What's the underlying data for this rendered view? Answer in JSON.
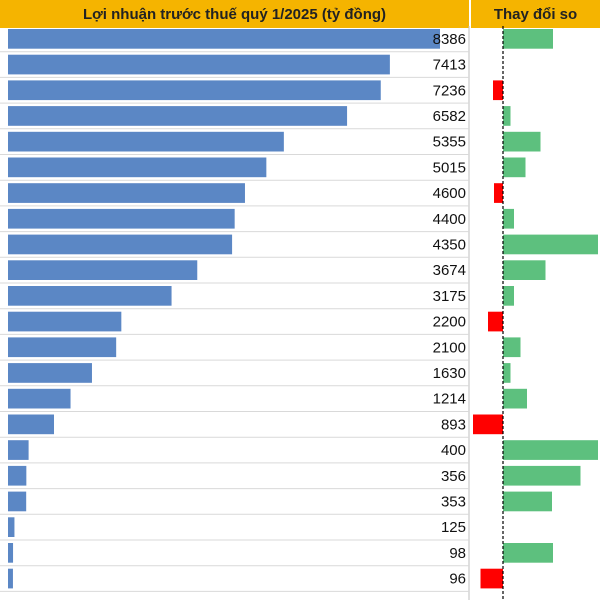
{
  "header": {
    "left_title": "Lợi nhuận trước thuế quý 1/2025 (tỷ đồng)",
    "right_title": "Thay đổi so"
  },
  "colors": {
    "header_bg": "#f5b400",
    "bar": "#5b87c5",
    "positive": "#5dc07e",
    "negative": "#ff0000",
    "row_line": "#d9d9d9"
  },
  "chart_data": [
    {
      "type": "bar",
      "orientation": "horizontal",
      "title": "Lợi nhuận trước thuế quý 1/2025 (tỷ đồng)",
      "values": [
        8386,
        7413,
        7236,
        6582,
        5355,
        5015,
        4600,
        4400,
        4350,
        3674,
        3175,
        2200,
        2100,
        1630,
        1214,
        893,
        400,
        356,
        353,
        125,
        98,
        96
      ],
      "xlim": [
        0,
        8386
      ],
      "data_labels": true,
      "grid": false
    },
    {
      "type": "bar",
      "orientation": "horizontal",
      "title": "Thay đổi so",
      "values": [
        1.0,
        0,
        -0.2,
        0.15,
        0.75,
        0.45,
        -0.18,
        0.22,
        1.9,
        0.85,
        0.22,
        -0.3,
        0.35,
        0.15,
        0.48,
        -0.6,
        1.9,
        1.55,
        0.98,
        0,
        1.0,
        -0.45
      ],
      "baseline": 0,
      "baseline_style": "dashed",
      "positive_color": "#5dc07e",
      "negative_color": "#ff0000"
    }
  ]
}
